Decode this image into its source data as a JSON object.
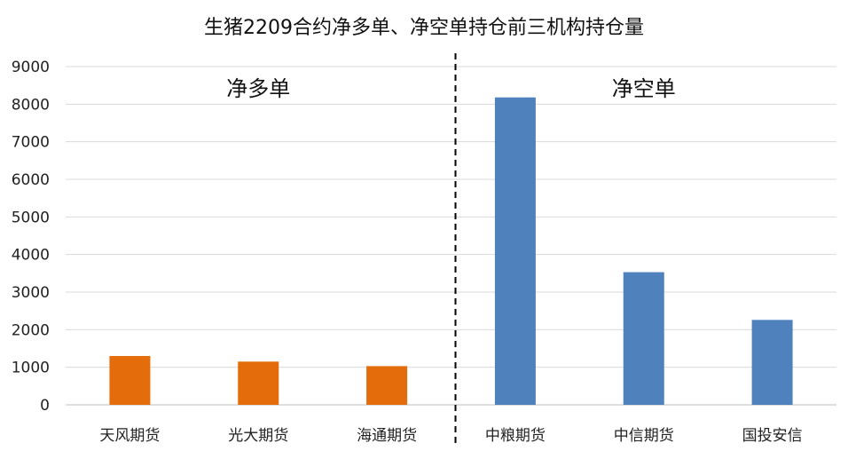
{
  "chart_data": {
    "type": "bar",
    "title": "生猪2209合约净多单、净空单持仓前三机构持仓量",
    "categories": [
      "天风期货",
      "光大期货",
      "海通期货",
      "中粮期货",
      "中信期货",
      "国投安信"
    ],
    "values": [
      1300,
      1150,
      1030,
      8180,
      3530,
      2260
    ],
    "ylim": [
      0,
      9000
    ],
    "yticks": [
      0,
      1000,
      2000,
      3000,
      4000,
      5000,
      6000,
      7000,
      8000,
      9000
    ],
    "grid": true,
    "groups": [
      {
        "label": "净多单",
        "categories": [
          "天风期货",
          "光大期货",
          "海通期货"
        ],
        "color": "#E46C0A"
      },
      {
        "label": "净空单",
        "categories": [
          "中粮期货",
          "中信期货",
          "国投安信"
        ],
        "color": "#4F81BD"
      }
    ]
  }
}
